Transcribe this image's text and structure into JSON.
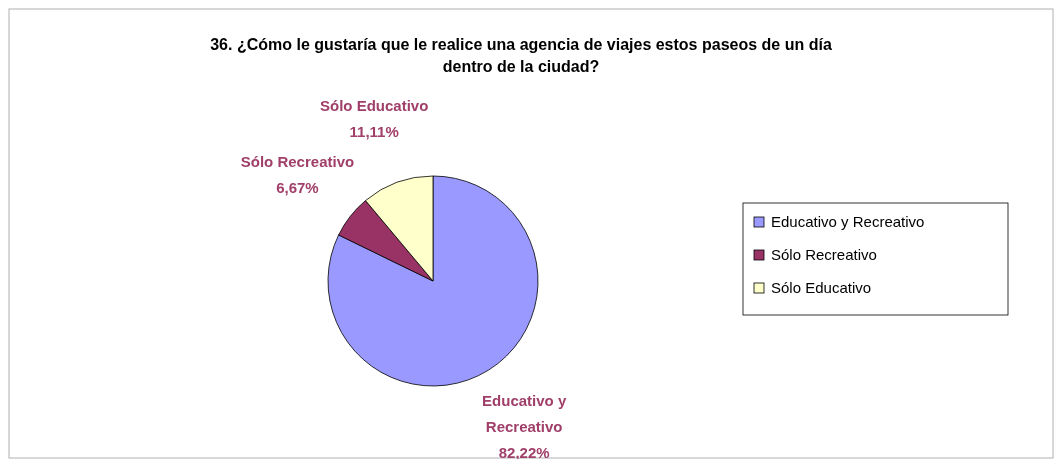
{
  "chart_data": {
    "type": "pie",
    "title": "36. ¿Cómo le gustaría que le realice una agencia de viajes estos paseos de un día dentro de la ciudad?",
    "categories": [
      "Educativo y Recreativo",
      "Sólo Recreativo",
      "Sólo Educativo"
    ],
    "values": [
      82.22,
      6.67,
      11.11
    ],
    "colors": [
      "#9999ff",
      "#993366",
      "#ffffcc"
    ],
    "value_labels": [
      "82,22%",
      "6,67%",
      "11,11%"
    ],
    "legend": "right"
  }
}
